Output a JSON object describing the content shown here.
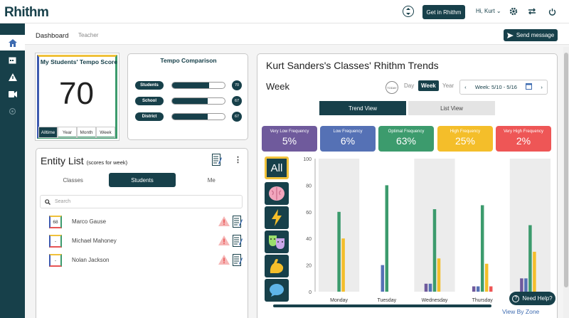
{
  "app": {
    "logo": "Rhithm"
  },
  "topbar": {
    "get_in": "Get in Rhithm",
    "user": "Hi, Kurt"
  },
  "subnav": {
    "dashboard": "Dashboard",
    "role": "Teacher",
    "send_message": "Send message"
  },
  "tempo_score": {
    "title": "My Students' Tempo Score",
    "score": "70",
    "tabs": [
      "Alltime",
      "Year",
      "Month",
      "Week"
    ],
    "active_tab": "Alltime"
  },
  "tempo_comparison": {
    "title": "Tempo Comparison",
    "rows": [
      {
        "label": "Students",
        "value": 70
      },
      {
        "label": "School",
        "value": 67
      },
      {
        "label": "District",
        "value": 67
      }
    ]
  },
  "entity_list": {
    "title": "Entity List",
    "subtitle": "(scores for week)",
    "tabs": [
      "Classes",
      "Students",
      "Me"
    ],
    "active_tab": "Students",
    "search_placeholder": "Search",
    "rows": [
      {
        "score": "68",
        "name": "Marco Gause"
      },
      {
        "score": "-",
        "name": "Michael Mahoney"
      },
      {
        "score": "-",
        "name": "Nolan Jackson"
      }
    ]
  },
  "trends": {
    "title": "Kurt Sanders's Classes' Rhithm Trends",
    "period_title": "Week",
    "periods": [
      "Day",
      "Week",
      "Year"
    ],
    "active_period": "Week",
    "week_range": "Week: 5/10 - 5/16",
    "view_toggle": [
      "Trend View",
      "List View"
    ],
    "active_view": "Trend View",
    "frequencies": [
      {
        "label": "Very Low Frequency",
        "value": "5%",
        "color": "#6f5a9c"
      },
      {
        "label": "Low Frequency",
        "value": "6%",
        "color": "#5571b5"
      },
      {
        "label": "Optimal Frequency",
        "value": "63%",
        "color": "#3c9b6d"
      },
      {
        "label": "High Frequency",
        "value": "25%",
        "color": "#f4be2a"
      },
      {
        "label": "Very High Frequency",
        "value": "2%",
        "color": "#ee5656"
      }
    ],
    "emotion_filters": [
      "All",
      "brain-icon",
      "lightning-icon",
      "theater-masks-icon",
      "muscle-arm-icon",
      "speech-bubble-icon"
    ],
    "view_by_zone": "View By Zone"
  },
  "chart_data": {
    "type": "bar",
    "categories": [
      "Monday",
      "Tuesday",
      "Wednesday",
      "Thursday",
      "Friday"
    ],
    "ylim": [
      0,
      100
    ],
    "yticks": [
      0,
      20,
      40,
      60,
      80,
      100
    ],
    "series": [
      {
        "name": "Very Low Frequency",
        "color": "#6f5a9c",
        "values": [
          0,
          0,
          6,
          4,
          10
        ]
      },
      {
        "name": "Low Frequency",
        "color": "#5571b5",
        "values": [
          0,
          20,
          6,
          4,
          10
        ]
      },
      {
        "name": "Optimal Frequency",
        "color": "#3c9b6d",
        "values": [
          60,
          80,
          62,
          65,
          50
        ]
      },
      {
        "name": "High Frequency",
        "color": "#f4be2a",
        "values": [
          40,
          0,
          25,
          21,
          30
        ]
      },
      {
        "name": "Very High Frequency",
        "color": "#ee5656",
        "values": [
          0,
          0,
          0,
          4,
          0
        ]
      }
    ]
  },
  "help": {
    "label": "Need Help?"
  }
}
